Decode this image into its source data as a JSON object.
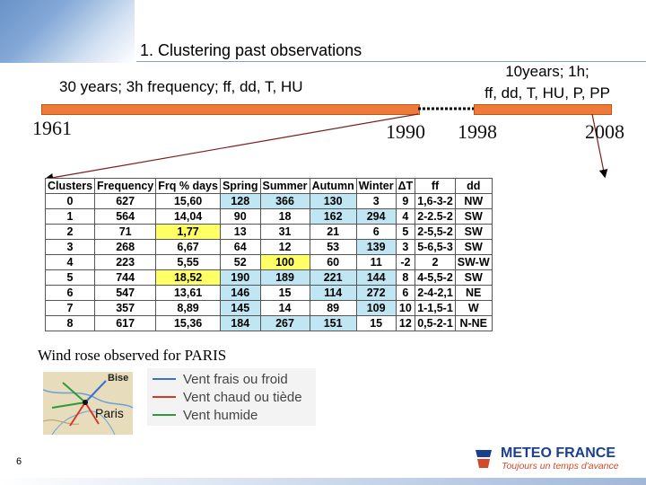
{
  "slide": {
    "title": "1. Clustering past observations",
    "page_number": "6"
  },
  "timeline": {
    "period1_label": "30 years; 3h frequency; ff, dd, T, HU",
    "period2_line1": "10years; 1h;",
    "period2_line2": "ff, dd, T, HU, P, PP",
    "years": [
      "1961",
      "1990",
      "1998",
      "2008"
    ]
  },
  "table": {
    "headers": [
      "Clusters",
      "Frequency",
      "Frq % days",
      "Spring",
      "Summer",
      "Autumn",
      "Winter",
      "ΔT",
      "ff",
      "dd"
    ],
    "rows": [
      [
        "0",
        "627",
        "15,60",
        "128",
        "366",
        "130",
        "3",
        "9",
        "1,6-3-2",
        "NW"
      ],
      [
        "1",
        "564",
        "14,04",
        "90",
        "18",
        "162",
        "294",
        "4",
        "2-2.5-2",
        "SW"
      ],
      [
        "2",
        "71",
        "1,77",
        "13",
        "31",
        "21",
        "6",
        "5",
        "2-5,5-2",
        "SW"
      ],
      [
        "3",
        "268",
        "6,67",
        "64",
        "12",
        "53",
        "139",
        "3",
        "5-6,5-3",
        "SW"
      ],
      [
        "4",
        "223",
        "5,55",
        "52",
        "100",
        "60",
        "11",
        "-2",
        "2",
        "SW-W"
      ],
      [
        "5",
        "744",
        "18,52",
        "190",
        "189",
        "221",
        "144",
        "8",
        "4-5,5-2",
        "SW"
      ],
      [
        "6",
        "547",
        "13,61",
        "146",
        "15",
        "114",
        "272",
        "6",
        "2-4-2,1",
        "NE"
      ],
      [
        "7",
        "357",
        "8,89",
        "145",
        "14",
        "89",
        "109",
        "10",
        "1-1,5-1",
        "W"
      ],
      [
        "8",
        "617",
        "15,36",
        "184",
        "267",
        "151",
        "15",
        "12",
        "0,5-2-1",
        "N-NE"
      ]
    ],
    "highlights": [
      [
        0,
        3,
        "cyan"
      ],
      [
        0,
        4,
        "cyan"
      ],
      [
        0,
        5,
        "cyan"
      ],
      [
        1,
        5,
        "cyan"
      ],
      [
        1,
        6,
        "cyan"
      ],
      [
        2,
        2,
        "yellow"
      ],
      [
        3,
        6,
        "cyan"
      ],
      [
        4,
        4,
        "yellow"
      ],
      [
        5,
        2,
        "yellow"
      ],
      [
        5,
        3,
        "cyan"
      ],
      [
        5,
        4,
        "cyan"
      ],
      [
        5,
        5,
        "cyan"
      ],
      [
        5,
        6,
        "cyan"
      ],
      [
        6,
        3,
        "cyan"
      ],
      [
        6,
        5,
        "cyan"
      ],
      [
        6,
        6,
        "cyan"
      ],
      [
        7,
        3,
        "cyan"
      ],
      [
        7,
        6,
        "cyan"
      ],
      [
        8,
        3,
        "cyan"
      ],
      [
        8,
        4,
        "cyan"
      ],
      [
        8,
        5,
        "cyan"
      ]
    ],
    "colors": {
      "cyan": "#bfe6f2",
      "yellow": "#ffff66"
    }
  },
  "wind_rose": {
    "caption": "Wind rose observed for PARIS",
    "map_labels": {
      "north": "Bise",
      "city": "Paris"
    },
    "legend": [
      {
        "label": "Vent frais ou froid",
        "color": "#3a6fd0"
      },
      {
        "label": "Vent chaud ou tiède",
        "color": "#d23a2a"
      },
      {
        "label": "Vent humide",
        "color": "#2e9a3a"
      }
    ]
  },
  "logo": {
    "name": "METEO FRANCE",
    "tagline": "Toujours un temps d'avance"
  },
  "colors": {
    "timeline_bar": "#ee7a3a",
    "logo_blue": "#1a3f8f",
    "logo_red": "#d24a2a"
  }
}
